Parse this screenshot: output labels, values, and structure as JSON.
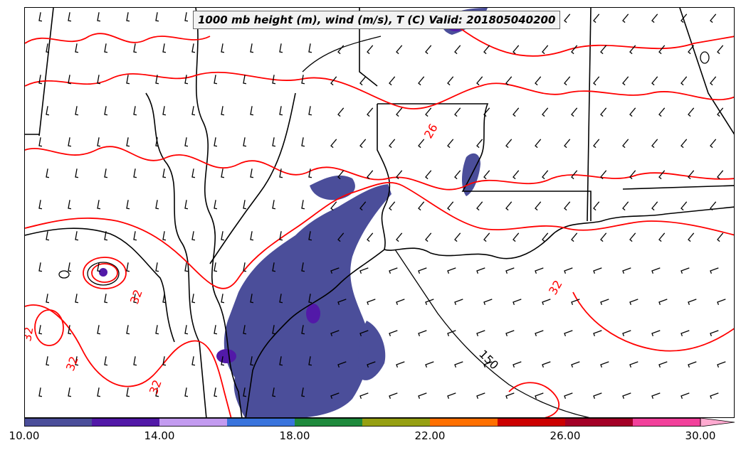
{
  "map": {
    "title": "1000 mb height (m), wind (m/s), T (C) Valid: 201805040200",
    "temperature_contour_labels": [
      "26",
      "32",
      "32",
      "32",
      "32",
      "32"
    ],
    "height_contour_labels": [
      "150"
    ],
    "colors": {
      "temperature_contour": "#ff0000",
      "height_contour": "#000000",
      "wind_barb": "#000000"
    }
  },
  "colorbar": {
    "colors": [
      "#4b4e9a",
      "#5219a8",
      "#c39bf0",
      "#3a74dd",
      "#1f8a3c",
      "#96a012",
      "#ff7000",
      "#cc0000",
      "#a30026",
      "#f2409b",
      "#ffaad0"
    ],
    "tick_labels": [
      "10.00",
      "14.00",
      "18.00",
      "22.00",
      "26.00",
      "30.00"
    ],
    "min": 10,
    "max": 31,
    "step": 2
  }
}
